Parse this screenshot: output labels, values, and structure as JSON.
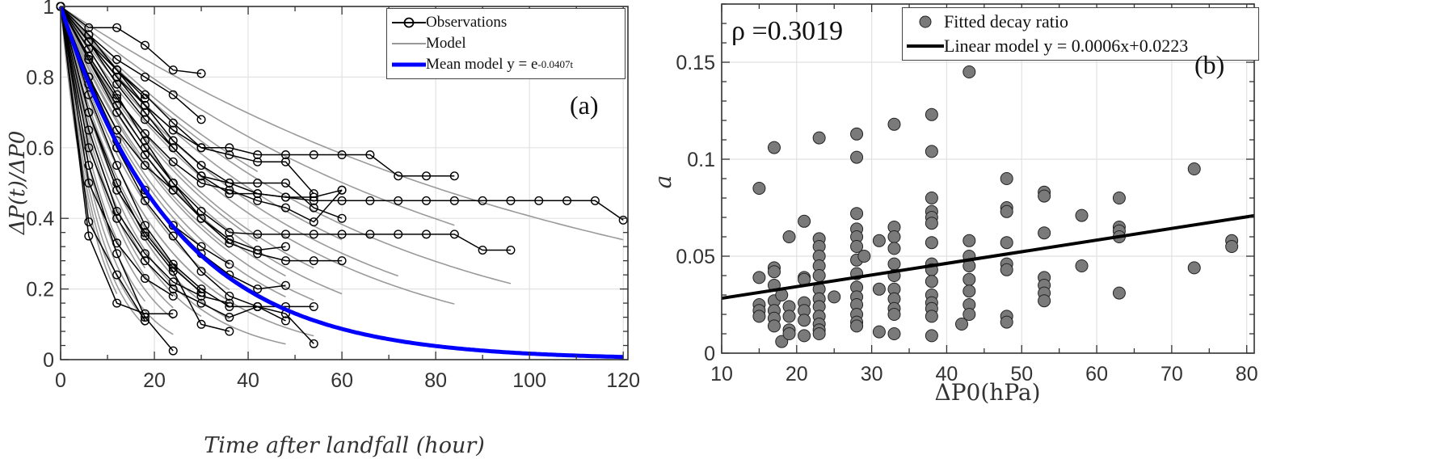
{
  "chart_data": [
    {
      "id": "a",
      "type": "line",
      "panel_label": "(a)",
      "xlabel": "Time after landfall (hour)",
      "ylabel": "ΔP(t)/ΔP0",
      "xlim": [
        0,
        121
      ],
      "ylim": [
        0,
        1
      ],
      "xticks": [
        0,
        20,
        40,
        60,
        80,
        100,
        120
      ],
      "xtick_labels": [
        "0",
        "20",
        "40",
        "60",
        "80",
        "100",
        "120"
      ],
      "yticks": [
        0,
        0.2,
        0.4,
        0.6,
        0.8,
        1
      ],
      "ytick_labels": [
        "0",
        "0.2",
        "0.4",
        "0.6",
        "0.8",
        "1"
      ],
      "grid": true,
      "legend": {
        "placement": "top-right",
        "entries": [
          "Observations",
          "Model",
          "Mean model y = e"
        ],
        "mean_exponent": "-0.0407t"
      },
      "mean_model": {
        "a": 0.0407,
        "tmax": 120,
        "color": "#0000ff"
      },
      "models": [
        {
          "a": 0.009,
          "tmax": 120
        },
        {
          "a": 0.0115,
          "tmax": 84
        },
        {
          "a": 0.016,
          "tmax": 96
        },
        {
          "a": 0.018,
          "tmax": 60
        },
        {
          "a": 0.02,
          "tmax": 72
        },
        {
          "a": 0.022,
          "tmax": 84
        },
        {
          "a": 0.025,
          "tmax": 54
        },
        {
          "a": 0.028,
          "tmax": 60
        },
        {
          "a": 0.03,
          "tmax": 48
        },
        {
          "a": 0.033,
          "tmax": 54
        },
        {
          "a": 0.036,
          "tmax": 48
        },
        {
          "a": 0.04,
          "tmax": 48
        },
        {
          "a": 0.045,
          "tmax": 36
        },
        {
          "a": 0.05,
          "tmax": 42
        },
        {
          "a": 0.055,
          "tmax": 30
        },
        {
          "a": 0.06,
          "tmax": 36
        },
        {
          "a": 0.07,
          "tmax": 30
        },
        {
          "a": 0.08,
          "tmax": 24
        },
        {
          "a": 0.09,
          "tmax": 24
        },
        {
          "a": 0.1,
          "tmax": 18
        },
        {
          "a": 0.12,
          "tmax": 18
        },
        {
          "a": 0.14,
          "tmax": 12
        },
        {
          "a": 0.015,
          "tmax": 30
        },
        {
          "a": 0.02,
          "tmax": 36
        },
        {
          "a": 0.026,
          "tmax": 42
        },
        {
          "a": 0.032,
          "tmax": 36
        },
        {
          "a": 0.038,
          "tmax": 30
        },
        {
          "a": 0.045,
          "tmax": 24
        },
        {
          "a": 0.06,
          "tmax": 24
        },
        {
          "a": 0.075,
          "tmax": 18
        },
        {
          "a": 0.11,
          "tmax": 24
        },
        {
          "a": 0.13,
          "tmax": 18
        },
        {
          "a": 0.015,
          "tmax": 42
        },
        {
          "a": 0.05,
          "tmax": 54
        },
        {
          "a": 0.065,
          "tmax": 48
        }
      ],
      "observations": [
        {
          "t": [
            0,
            6,
            12,
            18,
            24,
            30,
            36,
            42,
            48,
            54,
            60,
            66,
            72,
            78,
            84
          ],
          "y": [
            1,
            0.9,
            0.8,
            0.72,
            0.65,
            0.6,
            0.6,
            0.58,
            0.58,
            0.58,
            0.58,
            0.58,
            0.52,
            0.52,
            0.52
          ]
        },
        {
          "t": [
            0,
            6,
            12,
            18,
            24,
            30,
            36,
            42,
            48,
            54,
            60,
            66,
            72,
            78,
            84,
            90,
            96,
            102,
            108,
            114,
            120
          ],
          "y": [
            1,
            0.92,
            0.82,
            0.72,
            0.62,
            0.55,
            0.5,
            0.47,
            0.46,
            0.45,
            0.45,
            0.45,
            0.45,
            0.45,
            0.45,
            0.45,
            0.45,
            0.45,
            0.45,
            0.45,
            0.395
          ]
        },
        {
          "t": [
            0,
            6,
            12,
            18,
            24,
            30,
            36,
            42,
            48,
            54,
            60,
            66,
            72,
            78,
            84,
            90,
            96
          ],
          "y": [
            1,
            0.85,
            0.72,
            0.6,
            0.5,
            0.42,
            0.36,
            0.355,
            0.355,
            0.355,
            0.355,
            0.355,
            0.355,
            0.355,
            0.355,
            0.31,
            0.31
          ]
        },
        {
          "t": [
            0,
            6,
            12,
            18,
            24,
            30,
            36,
            42,
            48,
            54,
            60
          ],
          "y": [
            1,
            0.88,
            0.75,
            0.62,
            0.5,
            0.4,
            0.33,
            0.3,
            0.28,
            0.28,
            0.28
          ]
        },
        {
          "t": [
            0,
            6,
            12,
            18,
            24,
            30,
            36,
            42,
            48,
            54
          ],
          "y": [
            1,
            0.8,
            0.6,
            0.45,
            0.35,
            0.25,
            0.18,
            0.15,
            0.15,
            0.15
          ]
        },
        {
          "t": [
            0,
            6,
            12,
            18,
            24,
            30,
            36,
            42,
            48,
            54,
            60
          ],
          "y": [
            1,
            0.9,
            0.78,
            0.68,
            0.6,
            0.52,
            0.47,
            0.47,
            0.46,
            0.46,
            0.48
          ]
        },
        {
          "t": [
            0,
            6,
            12,
            18,
            24,
            30,
            36,
            42,
            48,
            54,
            60
          ],
          "y": [
            1,
            0.86,
            0.74,
            0.64,
            0.56,
            0.5,
            0.48,
            0.45,
            0.43,
            0.39,
            0.48
          ]
        },
        {
          "t": [
            0,
            6,
            12,
            18,
            24,
            30,
            36,
            42,
            48,
            54,
            60
          ],
          "y": [
            1,
            0.9,
            0.8,
            0.7,
            0.6,
            0.52,
            0.5,
            0.5,
            0.5,
            0.43,
            0.4
          ]
        },
        {
          "t": [
            0,
            6,
            12,
            18,
            24,
            30,
            36,
            42,
            48,
            54
          ],
          "y": [
            1,
            0.75,
            0.55,
            0.38,
            0.27,
            0.2,
            0.15,
            0.15,
            0.13,
            0.045
          ]
        },
        {
          "t": [
            0,
            6,
            12,
            18,
            24
          ],
          "y": [
            1,
            0.35,
            0.16,
            0.13,
            0.13
          ]
        },
        {
          "t": [
            0,
            6,
            12,
            18,
            24
          ],
          "y": [
            1,
            0.55,
            0.3,
            0.12,
            0.025
          ]
        },
        {
          "t": [
            0,
            6,
            12,
            18,
            24,
            30
          ],
          "y": [
            1,
            0.94,
            0.94,
            0.89,
            0.82,
            0.81
          ]
        },
        {
          "t": [
            0,
            6,
            12,
            18,
            24,
            30
          ],
          "y": [
            1,
            0.92,
            0.85,
            0.8,
            0.75,
            0.68
          ]
        },
        {
          "t": [
            0,
            6,
            12,
            18,
            24,
            30,
            36
          ],
          "y": [
            1,
            0.7,
            0.5,
            0.35,
            0.25,
            0.1,
            0.08
          ]
        },
        {
          "t": [
            0,
            6,
            12,
            18,
            24,
            30,
            36,
            42,
            48
          ],
          "y": [
            1,
            0.8,
            0.62,
            0.48,
            0.38,
            0.3,
            0.24,
            0.2,
            0.21
          ]
        },
        {
          "t": [
            0,
            6,
            12,
            18,
            24,
            30,
            36,
            42,
            48
          ],
          "y": [
            1,
            0.85,
            0.7,
            0.58,
            0.48,
            0.4,
            0.34,
            0.31,
            0.32
          ]
        },
        {
          "t": [
            0,
            6,
            12,
            18,
            24,
            30,
            36,
            42,
            48
          ],
          "y": [
            1,
            0.6,
            0.4,
            0.28,
            0.2,
            0.16,
            0.12,
            0.15,
            0.11
          ]
        },
        {
          "t": [
            0,
            6,
            12,
            18
          ],
          "y": [
            1,
            0.39,
            0.24,
            0.11
          ]
        },
        {
          "t": [
            0,
            6,
            12,
            18,
            24,
            30,
            36,
            42,
            48,
            54
          ],
          "y": [
            1,
            0.92,
            0.82,
            0.75,
            0.67,
            0.6,
            0.58,
            0.56,
            0.56,
            0.47
          ]
        },
        {
          "t": [
            0,
            6,
            12,
            18,
            24,
            30,
            36
          ],
          "y": [
            1,
            0.65,
            0.42,
            0.3,
            0.22,
            0.18,
            0.16
          ]
        },
        {
          "t": [
            0,
            6,
            12,
            18,
            24,
            30
          ],
          "y": [
            1,
            0.7,
            0.48,
            0.36,
            0.26,
            0.19
          ]
        },
        {
          "t": [
            0,
            6,
            12,
            18,
            24
          ],
          "y": [
            1,
            0.8,
            0.65,
            0.55,
            0.48
          ]
        },
        {
          "t": [
            0,
            6,
            12,
            18,
            24,
            30,
            36
          ],
          "y": [
            1,
            0.78,
            0.6,
            0.47,
            0.38,
            0.32,
            0.27
          ]
        },
        {
          "t": [
            0,
            6,
            12,
            18,
            24
          ],
          "y": [
            1,
            0.5,
            0.33,
            0.23,
            0.18
          ]
        },
        {
          "t": [
            0,
            6,
            12,
            18
          ],
          "y": [
            1,
            0.9,
            0.82,
            0.74
          ]
        }
      ]
    },
    {
      "id": "b",
      "type": "scatter",
      "panel_label": "(b)",
      "annotation": "ρ =0.3019",
      "xlabel": "ΔP0(hPa)",
      "ylabel": "a",
      "xlim": [
        10,
        81
      ],
      "ylim": [
        0,
        0.18
      ],
      "xticks": [
        10,
        20,
        30,
        40,
        50,
        60,
        70,
        80
      ],
      "xtick_labels": [
        "10",
        "20",
        "30",
        "40",
        "50",
        "60",
        "70",
        "80"
      ],
      "yticks": [
        0,
        0.05,
        0.1,
        0.15
      ],
      "ytick_labels": [
        "0",
        "0.05",
        "0.1",
        "0.15"
      ],
      "grid": true,
      "legend": {
        "placement": "top-right",
        "entries": [
          "Fitted decay ratio",
          "Linear model y = 0.0006x+0.0223"
        ]
      },
      "fit": {
        "slope": 0.0006,
        "intercept": 0.0223
      },
      "marker_color": "#7a7a7a",
      "points": [
        {
          "x": 15,
          "y": [
            0.085,
            0.039,
            0.025,
            0.022,
            0.019
          ]
        },
        {
          "x": 17,
          "y": [
            0.106,
            0.044,
            0.042,
            0.035,
            0.027,
            0.022,
            0.018,
            0.014
          ]
        },
        {
          "x": 18,
          "y": [
            0.03,
            0.006
          ]
        },
        {
          "x": 19,
          "y": [
            0.06,
            0.024,
            0.019,
            0.012,
            0.01
          ]
        },
        {
          "x": 21,
          "y": [
            0.068,
            0.039,
            0.038,
            0.026,
            0.022,
            0.017,
            0.009
          ]
        },
        {
          "x": 23,
          "y": [
            0.111,
            0.059,
            0.055,
            0.05,
            0.045,
            0.04,
            0.033,
            0.028,
            0.024,
            0.019,
            0.015,
            0.012,
            0.01
          ]
        },
        {
          "x": 25,
          "y": [
            0.029
          ]
        },
        {
          "x": 28,
          "y": [
            0.113,
            0.101,
            0.072,
            0.064,
            0.06,
            0.055,
            0.048,
            0.041,
            0.034,
            0.029,
            0.025,
            0.02,
            0.016,
            0.014
          ]
        },
        {
          "x": 29,
          "y": [
            0.05
          ]
        },
        {
          "x": 31,
          "y": [
            0.058,
            0.033,
            0.011
          ]
        },
        {
          "x": 33,
          "y": [
            0.118,
            0.065,
            0.06,
            0.054,
            0.046,
            0.04,
            0.033,
            0.028,
            0.023,
            0.02,
            0.01
          ]
        },
        {
          "x": 38,
          "y": [
            0.123,
            0.104,
            0.08,
            0.073,
            0.07,
            0.067,
            0.057,
            0.046,
            0.043,
            0.037,
            0.03,
            0.026,
            0.023,
            0.019,
            0.009
          ]
        },
        {
          "x": 42,
          "y": [
            0.015
          ]
        },
        {
          "x": 43,
          "y": [
            0.145,
            0.058,
            0.05,
            0.045,
            0.038,
            0.032,
            0.025,
            0.02
          ]
        },
        {
          "x": 48,
          "y": [
            0.09,
            0.075,
            0.073,
            0.057,
            0.046,
            0.043,
            0.019,
            0.016
          ]
        },
        {
          "x": 53,
          "y": [
            0.083,
            0.081,
            0.062,
            0.039,
            0.035,
            0.031,
            0.027
          ]
        },
        {
          "x": 58,
          "y": [
            0.071,
            0.045
          ]
        },
        {
          "x": 63,
          "y": [
            0.08,
            0.065,
            0.063,
            0.06,
            0.031
          ]
        },
        {
          "x": 73,
          "y": [
            0.095,
            0.044
          ]
        },
        {
          "x": 78,
          "y": [
            0.058,
            0.055
          ]
        }
      ]
    }
  ]
}
